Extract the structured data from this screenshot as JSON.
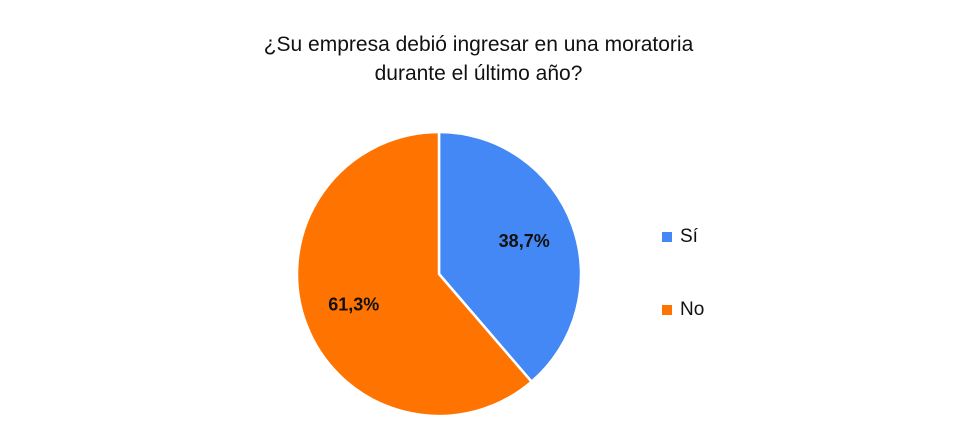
{
  "chart_data": {
    "type": "pie",
    "title_lines": [
      "¿Su empresa debió ingresar en una moratoria",
      "durante el último año?"
    ],
    "categories": [
      "Sí",
      "No"
    ],
    "values": [
      38.7,
      61.3
    ],
    "data_labels": [
      "38,7%",
      "61,3%"
    ],
    "colors": [
      "#4488F5",
      "#FF7300"
    ],
    "legend_position": "right"
  }
}
